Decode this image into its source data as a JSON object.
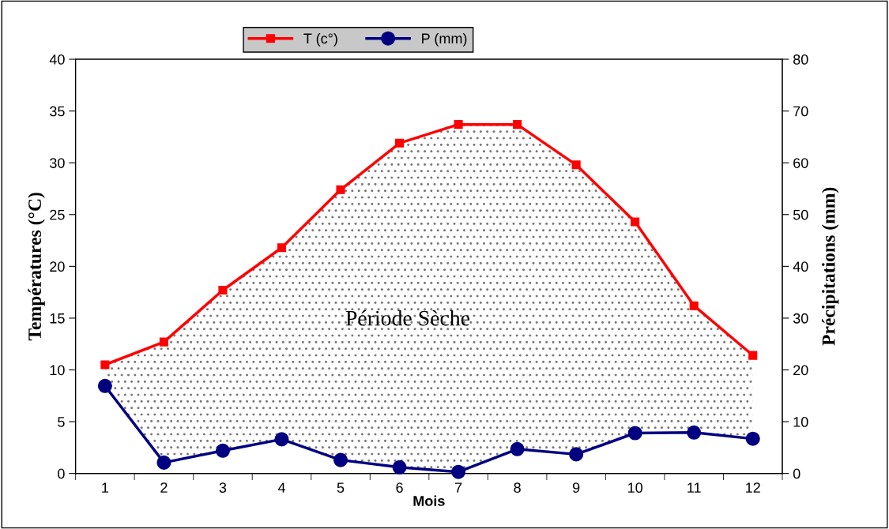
{
  "chart_data": {
    "type": "line",
    "xlabel": "Mois",
    "ylabel": "Températures (°C)",
    "y2label": "Précipitations (mm)",
    "categories": [
      "1",
      "2",
      "3",
      "4",
      "5",
      "6",
      "7",
      "8",
      "9",
      "10",
      "11",
      "12"
    ],
    "series": [
      {
        "name": "T (c°)",
        "color": "#ff0000",
        "marker": "square",
        "values": [
          10.5,
          12.7,
          17.7,
          21.8,
          27.4,
          31.9,
          33.7,
          33.7,
          29.8,
          24.3,
          16.2,
          11.4
        ],
        "lower": [
          8.45,
          1.05,
          2.2,
          3.3,
          1.3,
          0.6,
          0.15,
          2.35,
          1.85,
          3.9,
          3.95,
          3.35
        ],
        "upper": [
          10.5,
          12.7,
          17.7,
          21.8,
          27.4,
          31.9,
          33.7,
          33.7,
          29.8,
          24.3,
          16.2,
          11.4
        ]
      },
      {
        "name": "P (mm)",
        "color": "#000080",
        "marker": "circle",
        "axis": "y2",
        "values": [
          16.9,
          2.1,
          4.4,
          6.6,
          2.6,
          1.2,
          0.3,
          4.7,
          3.7,
          7.8,
          7.9,
          6.7
        ]
      }
    ],
    "ylim": [
      0,
      40
    ],
    "yticks": [
      0,
      5,
      10,
      15,
      20,
      25,
      30,
      35,
      40
    ],
    "y2lim": [
      0,
      80
    ],
    "y2ticks": [
      0,
      10,
      20,
      30,
      40,
      50,
      60,
      70,
      80
    ],
    "annotations": [
      "Période Sèche"
    ],
    "grid": false,
    "legend": "top",
    "line_style": "solid"
  }
}
